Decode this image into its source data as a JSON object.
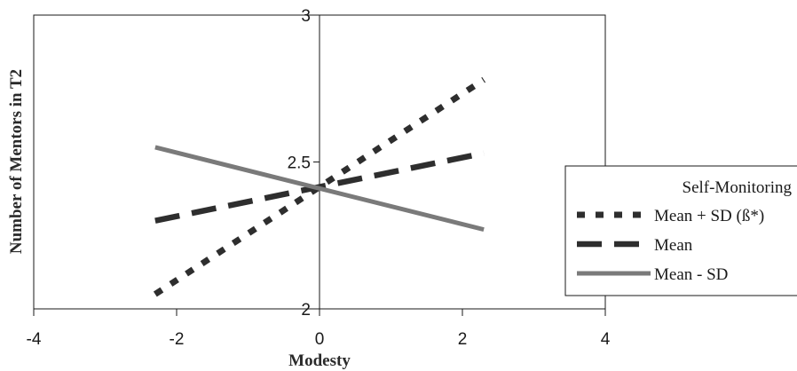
{
  "chart_data": {
    "type": "line",
    "xlabel": "Modesty",
    "ylabel": "Number of Mentors in T2",
    "xlim": [
      -4,
      4
    ],
    "ylim": [
      2,
      3
    ],
    "x_ticks": [
      "-4",
      "-2",
      "0",
      "2",
      "4"
    ],
    "y_ticks": [
      "2",
      "2.5",
      "3"
    ],
    "grid": false,
    "legend": {
      "title": "Self-Monitoring",
      "position": "right"
    },
    "series": [
      {
        "name": "Mean + SD (ß*)",
        "style": "dotted",
        "color": "#2e2e2e",
        "x": [
          -2.3,
          2.3
        ],
        "y": [
          2.05,
          2.78
        ]
      },
      {
        "name": "Mean",
        "style": "dashed",
        "color": "#2e2e2e",
        "x": [
          -2.3,
          2.3
        ],
        "y": [
          2.3,
          2.53
        ]
      },
      {
        "name": "Mean - SD",
        "style": "solid",
        "color": "#7a7a7a",
        "x": [
          -2.3,
          2.3
        ],
        "y": [
          2.55,
          2.27
        ]
      }
    ]
  }
}
